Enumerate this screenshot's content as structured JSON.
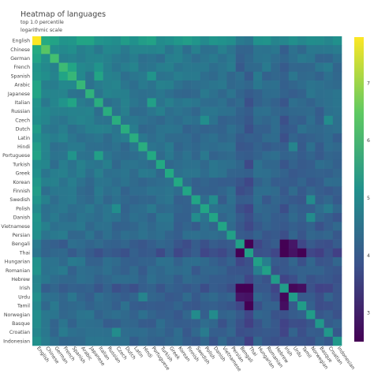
{
  "chart_data": {
    "type": "heatmap",
    "title": "Heatmap of languages",
    "subtitle": "top 1.0 percentile",
    "scale_note": "logarithmic scale",
    "languages": [
      "English",
      "Chinese",
      "German",
      "French",
      "Spanish",
      "Arabic",
      "Japanese",
      "Italian",
      "Russian",
      "Czech",
      "Dutch",
      "Latin",
      "Hindi",
      "Portuguese",
      "Turkish",
      "Greek",
      "Korean",
      "Finnish",
      "Swedish",
      "Polish",
      "Danish",
      "Vietnamese",
      "Persian",
      "Bengali",
      "Thai",
      "Hungarian",
      "Romanian",
      "Hebrew",
      "Irish",
      "Urdu",
      "Tamil",
      "Norwegian",
      "Basque",
      "Croatian",
      "Indonesian"
    ],
    "colorscale": "viridis",
    "color_range": [
      2.5,
      7.8
    ],
    "colorbar_ticks": [
      3,
      4,
      5,
      6,
      7
    ],
    "diagonal": [
      7.8,
      6.4,
      6.2,
      6.1,
      6.0,
      6.0,
      5.9,
      5.8,
      5.8,
      5.8,
      5.8,
      5.8,
      5.8,
      5.7,
      5.7,
      5.7,
      5.7,
      5.6,
      5.6,
      5.6,
      5.6,
      5.6,
      5.5,
      5.5,
      5.5,
      5.5,
      5.5,
      5.4,
      5.4,
      5.4,
      5.4,
      5.4,
      5.3,
      5.3,
      5.3
    ],
    "row_bias": [
      1.6,
      0.6,
      0.5,
      0.5,
      0.4,
      0.4,
      0.3,
      0.3,
      0.3,
      0.2,
      0.2,
      0.2,
      0.1,
      0.2,
      0.1,
      0.1,
      0.0,
      0.0,
      0.0,
      0.0,
      0.0,
      -0.1,
      -0.1,
      -0.6,
      -0.8,
      -0.2,
      -0.2,
      -0.3,
      -0.7,
      -0.3,
      -0.3,
      -0.2,
      -0.3,
      -0.2,
      -0.3
    ],
    "low_pairs": [
      [
        23,
        24
      ],
      [
        23,
        28
      ],
      [
        24,
        28
      ],
      [
        24,
        29
      ],
      [
        28,
        29
      ],
      [
        23,
        29
      ],
      [
        28,
        30
      ],
      [
        24,
        30
      ]
    ],
    "high_pairs": [
      [
        12,
        29
      ],
      [
        25,
        26
      ],
      [
        18,
        20
      ],
      [
        18,
        31
      ],
      [
        20,
        31
      ],
      [
        9,
        19
      ],
      [
        9,
        33
      ],
      [
        19,
        33
      ],
      [
        3,
        4
      ],
      [
        4,
        13
      ],
      [
        3,
        7
      ],
      [
        4,
        7
      ],
      [
        7,
        13
      ]
    ]
  }
}
